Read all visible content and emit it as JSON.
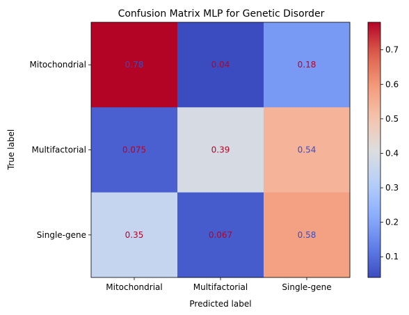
{
  "chart_data": {
    "type": "heatmap",
    "title": "Confusion Matrix MLP for Genetic Disorder",
    "xlabel": "Predicted label",
    "ylabel": "True label",
    "x_categories": [
      "Mitochondrial",
      "Multifactorial",
      "Single-gene"
    ],
    "y_categories": [
      "Mitochondrial",
      "Multifactorial",
      "Single-gene"
    ],
    "values": [
      [
        0.78,
        0.04,
        0.18
      ],
      [
        0.075,
        0.39,
        0.54
      ],
      [
        0.35,
        0.067,
        0.58
      ]
    ],
    "cell_labels": [
      [
        "0.78",
        "0.04",
        "0.18"
      ],
      [
        "0.075",
        "0.39",
        "0.54"
      ],
      [
        "0.35",
        "0.067",
        "0.58"
      ]
    ],
    "colormap": "coolwarm",
    "vmin": 0.04,
    "vmax": 0.78,
    "colorbar_ticks": [
      "0.1",
      "0.2",
      "0.3",
      "0.4",
      "0.5",
      "0.6",
      "0.7"
    ],
    "colorbar_tick_values": [
      0.1,
      0.2,
      0.3,
      0.4,
      0.5,
      0.6,
      0.7
    ],
    "text_colors": {
      "on_warm": "#3b4cc0",
      "on_cool": "#b40426",
      "axis_text": "#000000"
    }
  }
}
